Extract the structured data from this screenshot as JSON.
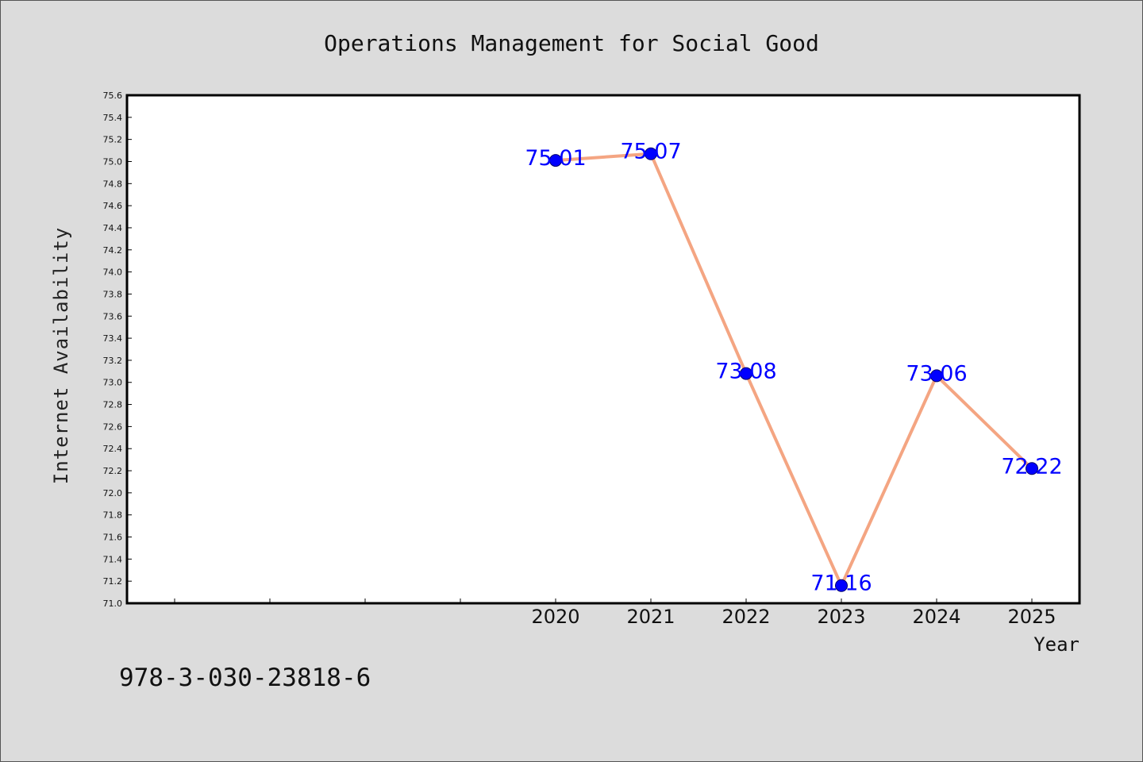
{
  "chart_data": {
    "type": "line",
    "title": "Operations Management for Social Good",
    "xlabel": "Year",
    "ylabel": "Internet Availability",
    "x": [
      "2020",
      "2021",
      "2022",
      "2023",
      "2024",
      "2025"
    ],
    "series": [
      {
        "values": [
          75.01,
          75.07,
          73.08,
          71.16,
          73.06,
          72.22
        ]
      }
    ],
    "data_labels": [
      "75.01",
      "75.07",
      "73.08",
      "71.16",
      "73.06",
      "72.22"
    ],
    "ylim": [
      71.0,
      75.6
    ],
    "yticks": [
      "71.0",
      "71.2",
      "71.4",
      "71.6",
      "71.8",
      "72.0",
      "72.2",
      "72.4",
      "72.6",
      "72.8",
      "73.0",
      "73.2",
      "73.4",
      "73.6",
      "73.8",
      "74.0",
      "74.2",
      "74.4",
      "74.6",
      "74.8",
      "75.0",
      "75.2",
      "75.4",
      "75.6"
    ],
    "x_category_slots": 10,
    "grid": false,
    "line_color": "#f4a582",
    "marker_color": "#0000ff",
    "label_color": "#0000ff"
  },
  "annotation": "978-3-030-23818-6"
}
